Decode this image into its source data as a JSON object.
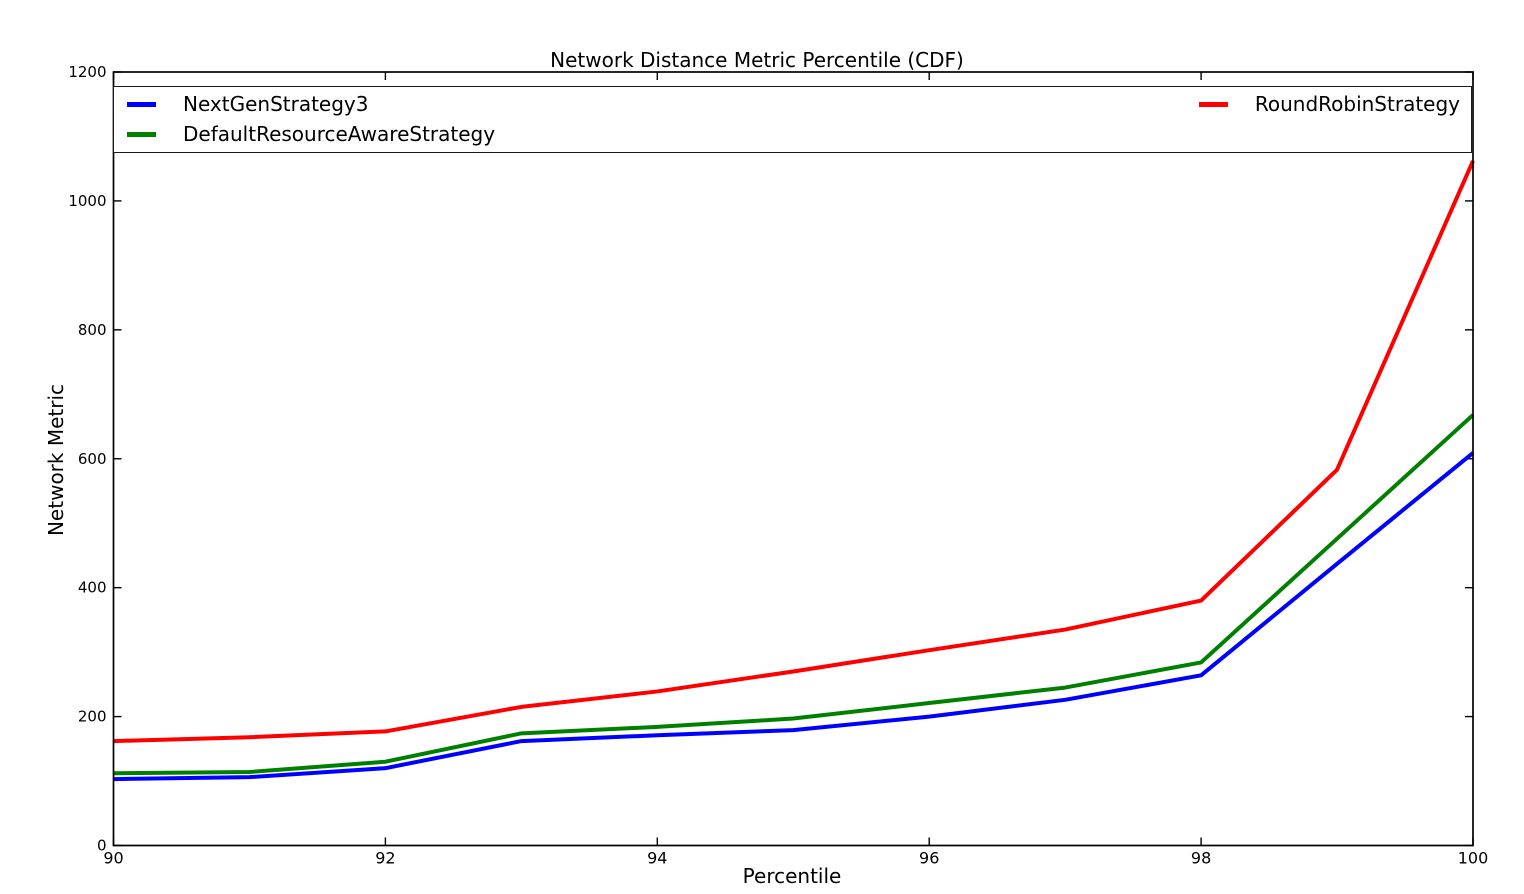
{
  "title": "Network Distance Metric Percentile (CDF)",
  "xlabel": "Percentile",
  "ylabel": "Network Metric",
  "legend": {
    "position": "top-expanded-two-columns",
    "entries": [
      {
        "label": "NextGenStrategy3",
        "color": "#0000ff"
      },
      {
        "label": "DefaultResourceAwareStrategy",
        "color": "#008000"
      },
      {
        "label": "RoundRobinStrategy",
        "color": "#ff0000"
      }
    ]
  },
  "chart_data": {
    "type": "line",
    "title": "Network Distance Metric Percentile (CDF)",
    "xlabel": "Percentile",
    "ylabel": "Network Metric",
    "x": [
      90,
      91,
      92,
      93,
      94,
      95,
      96,
      97,
      98,
      99,
      100
    ],
    "series": [
      {
        "name": "NextGenStrategy3",
        "color": "#0000ff",
        "values": [
          103,
          106,
          120,
          162,
          171,
          179,
          200,
          226,
          264,
          437,
          609
        ]
      },
      {
        "name": "DefaultResourceAwareStrategy",
        "color": "#008000",
        "values": [
          112,
          114,
          130,
          174,
          184,
          197,
          221,
          245,
          284,
          476,
          668
        ]
      },
      {
        "name": "RoundRobinStrategy",
        "color": "#ff0000",
        "values": [
          162,
          168,
          177,
          215,
          239,
          270,
          303,
          335,
          380,
          583,
          1062
        ]
      }
    ],
    "xlim": [
      90,
      100
    ],
    "ylim": [
      0,
      1200
    ],
    "xticks": [
      90,
      92,
      94,
      96,
      98,
      100
    ],
    "yticks": [
      0,
      200,
      400,
      600,
      800,
      1000,
      1200
    ],
    "grid": false,
    "tick_direction": "in",
    "frame_color": "#000000",
    "background": "#ffffff",
    "legend_position": "upper, full-width expanded, 2 columns"
  }
}
